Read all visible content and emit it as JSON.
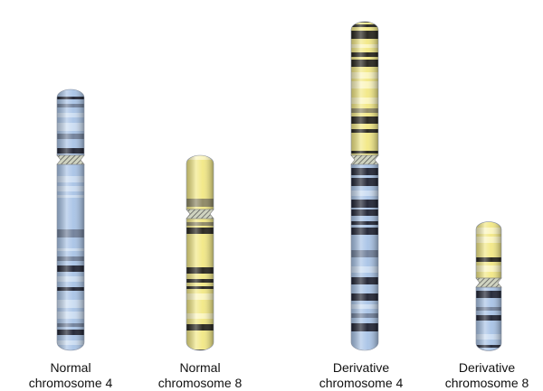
{
  "labels": [
    {
      "line1": "Normal",
      "line2": "chromosome 4"
    },
    {
      "line1": "Normal",
      "line2": "chromosome 8"
    },
    {
      "line1": "Derivative",
      "line2": "chromosome 4"
    },
    {
      "line1": "Derivative",
      "line2": "chromosome 8"
    }
  ]
}
